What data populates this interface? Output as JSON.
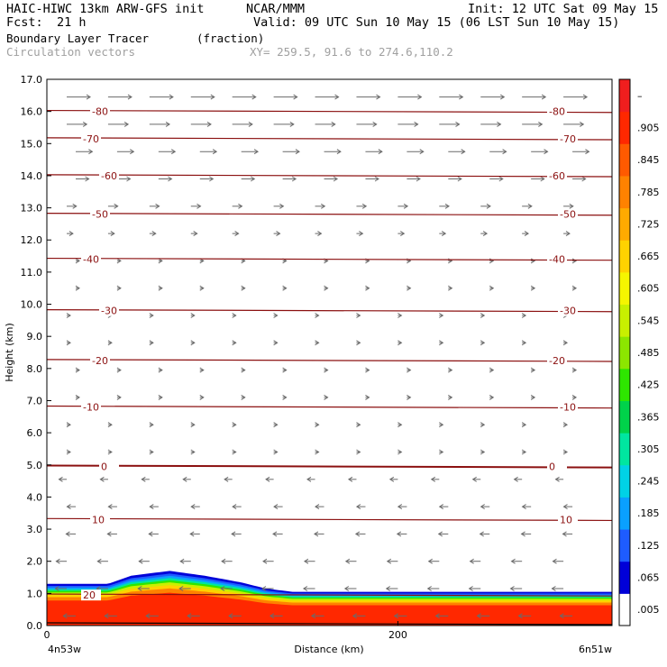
{
  "header": {
    "model": "HAIC-HIWC 13km ARW-GFS init",
    "org": "NCAR/MMM",
    "init": "Init: 12 UTC Sat 09 May 15",
    "fcst_label": "Fcst:",
    "fcst_value": "21 h",
    "valid": "Valid: 09 UTC Sun 10 May 15 (06 LST Sun 10 May 15)",
    "field": "Boundary Layer Tracer",
    "field_units": "(fraction)",
    "vectors": "Circulation vectors",
    "xy": "XY= 259.5, 91.6 to 274.6,110.2"
  },
  "chart_data": {
    "type": "heatmap",
    "title": "Boundary Layer Tracer",
    "xlabel": "Distance (km)",
    "ylabel": "Height (km)",
    "xlim": [
      0,
      322
    ],
    "ylim": [
      0,
      17
    ],
    "x_ticks": [
      "0",
      "200"
    ],
    "x_end_labels": {
      "left": "4n53w",
      "right": "6n51w"
    },
    "y_ticks": [
      "0.0",
      "1.0",
      "2.0",
      "3.0",
      "4.0",
      "5.0",
      "6.0",
      "7.0",
      "8.0",
      "9.0",
      "10.0",
      "11.0",
      "12.0",
      "13.0",
      "14.0",
      "15.0",
      "16.0",
      "17.0"
    ],
    "tracer_top_profile": {
      "x_km": [
        0,
        35,
        48,
        70,
        90,
        110,
        125,
        140,
        322
      ],
      "top_km": [
        1.3,
        1.3,
        1.55,
        1.7,
        1.55,
        1.35,
        1.15,
        1.05,
        1.05
      ]
    },
    "temperature_contours": {
      "units": "C",
      "levels": [
        20,
        10,
        0,
        -10,
        -20,
        -30,
        -40,
        -50,
        -60,
        -70,
        -80
      ],
      "heights_km": [
        0.95,
        3.3,
        4.95,
        6.8,
        8.25,
        9.8,
        11.4,
        12.8,
        14.0,
        15.15,
        16.0
      ],
      "label_text": [
        "20",
        "10",
        "0",
        "-10",
        "-20",
        "-30",
        "-40",
        "-50",
        "-60",
        "-70",
        "-80"
      ]
    },
    "colorbar": {
      "labels": [
        ".005",
        ".065",
        ".125",
        ".185",
        ".245",
        ".305",
        ".365",
        ".425",
        ".485",
        ".545",
        ".605",
        ".665",
        ".725",
        ".785",
        ".845",
        ".905",
        "–"
      ],
      "colors": [
        "#ffffff",
        "#0000d8",
        "#1e5cff",
        "#0aa0ff",
        "#00d2e6",
        "#00e6a0",
        "#00d24a",
        "#2ee600",
        "#8ce600",
        "#c8f000",
        "#f5f500",
        "#ffd200",
        "#ffaa00",
        "#ff8200",
        "#ff5a00",
        "#ff2800",
        "#f01e1e"
      ]
    },
    "wind_vectors": "low levels easterly, upper levels westerly"
  }
}
